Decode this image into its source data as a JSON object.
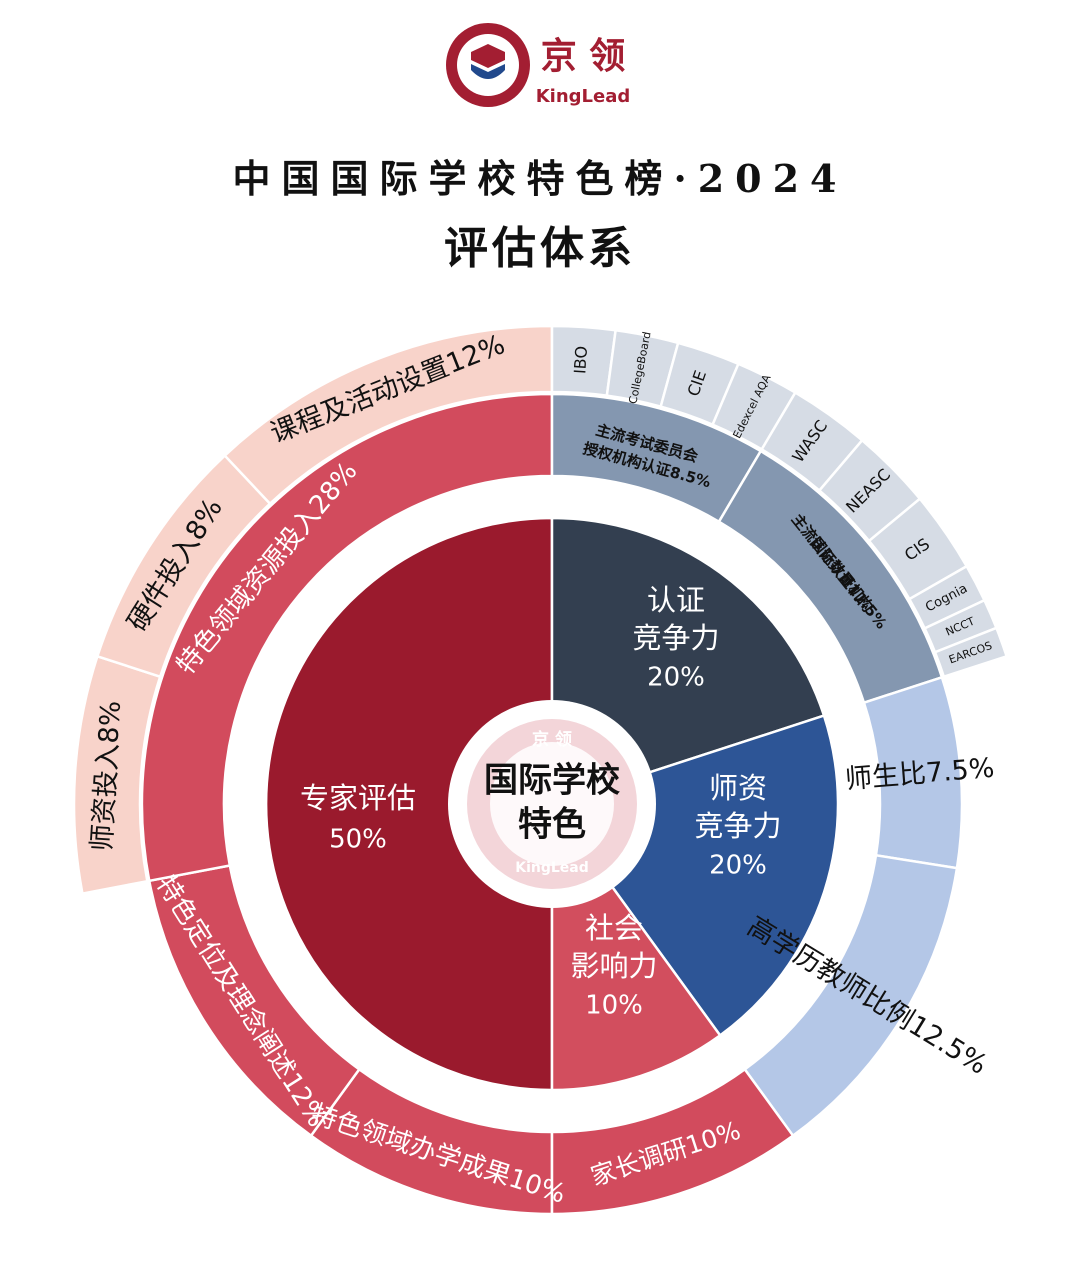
{
  "brand": {
    "cn": "京 领",
    "en": "KingLead",
    "colors": {
      "primary": "#A31E32",
      "blue": "#21498C"
    }
  },
  "title": "中国国际学校特色榜·2024",
  "subtitle": "评估体系",
  "chart_data": {
    "type": "sunburst",
    "center_label": [
      "国际学校",
      "特色"
    ],
    "colors": {
      "expert": "#9A1A2D",
      "cert": "#333F50",
      "teacher": "#2D5596",
      "social": "#D24E5E",
      "ring2_red": "#D24B5D",
      "ring2_grey": "#8497B0",
      "ring2_light": "#B4C7E7",
      "ring3_pink": "#F8D3CA",
      "ring3_blue": "#D6DCE5"
    },
    "inner": [
      {
        "name": "专家评估",
        "value": 50,
        "label": "50%"
      },
      {
        "name": "认证竞争力",
        "value": 20,
        "label": "20%"
      },
      {
        "name": "师资竞争力",
        "value": 20,
        "label": "20%"
      },
      {
        "name": "社会影响力",
        "value": 10,
        "label": "10%"
      }
    ],
    "middle": [
      {
        "name": "主流考试委员会授权机构认证",
        "value": 8.5,
        "label": "主流考试委员会授权机构认证8.5%"
      },
      {
        "name": "主流国际认证机构认证数量",
        "value": 11.5,
        "label": "主流国际认证机构认证数量11.5%"
      },
      {
        "name": "师生比",
        "value": 7.5,
        "label": "师生比7.5%"
      },
      {
        "name": "高学历教师比例",
        "value": 12.5,
        "label": "高学历教师比例12.5%"
      },
      {
        "name": "家长调研",
        "value": 10,
        "label": "家长调研10%"
      },
      {
        "name": "特色领域办学成果",
        "value": 10,
        "label": "特色领域办学成果10%"
      },
      {
        "name": "特色定位及理念阐述",
        "value": 12,
        "label": "特色定位及理念阐述12%"
      },
      {
        "name": "特色领域资源投入",
        "value": 28,
        "label": "特色领域资源投入28%"
      }
    ],
    "outer_resources": [
      {
        "name": "师资投入",
        "value": 8,
        "label": "师资投入8%"
      },
      {
        "name": "硬件投入",
        "value": 8,
        "label": "硬件投入8%"
      },
      {
        "name": "课程及活动设置",
        "value": 12,
        "label": "课程及活动设置12%"
      }
    ],
    "outer_exam_boards": [
      "IBO",
      "CollegeBoard",
      "CIE",
      "Edexcel AQA"
    ],
    "outer_accreditors": [
      "WASC",
      "NEASC",
      "CIS",
      "Cognia",
      "NCCT",
      "EARCOS"
    ]
  }
}
